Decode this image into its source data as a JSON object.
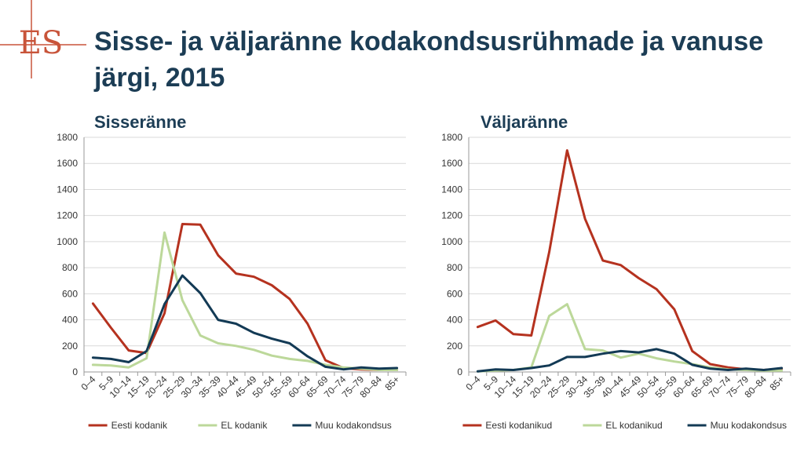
{
  "title": "Sisse- ja väljaränne kodakondsusrühmade ja vanuse järgi, 2015",
  "logo_text": "ES",
  "panels": [
    {
      "title": "Sisseränne"
    },
    {
      "title": "Väljaränne"
    }
  ],
  "colors": {
    "title": "#1c3d55",
    "logo": "#c8543a",
    "series": [
      "#b5321f",
      "#bcd89a",
      "#133a55"
    ],
    "grid": "#d9d9d9",
    "axis_text": "#333333"
  },
  "chart_data": [
    {
      "type": "line",
      "title": "Sisseränne",
      "categories": [
        "0–4",
        "5–9",
        "10–14",
        "15–19",
        "20–24",
        "25–29",
        "30–34",
        "35–39",
        "40–44",
        "45–49",
        "50–54",
        "55–59",
        "60–64",
        "65–69",
        "70–74",
        "75–79",
        "80–84",
        "85+"
      ],
      "yticks": [
        "0",
        "200",
        "400",
        "600",
        "800",
        "1000",
        "1200",
        "1400",
        "1600",
        "1800"
      ],
      "ylim": [
        0,
        1800
      ],
      "grid": true,
      "legend": "bottom",
      "series": [
        {
          "name": "Eesti kodanik",
          "values": [
            525,
            340,
            165,
            145,
            450,
            1135,
            1130,
            895,
            755,
            730,
            665,
            560,
            370,
            90,
            30,
            20,
            15,
            15
          ]
        },
        {
          "name": "EL kodanik",
          "values": [
            55,
            50,
            35,
            105,
            1070,
            550,
            280,
            220,
            200,
            170,
            125,
            100,
            85,
            55,
            35,
            25,
            15,
            15
          ]
        },
        {
          "name": "Muu kodakondsus",
          "values": [
            110,
            100,
            75,
            160,
            520,
            740,
            605,
            400,
            370,
            300,
            255,
            220,
            120,
            40,
            20,
            35,
            25,
            30
          ]
        }
      ]
    },
    {
      "type": "line",
      "title": "Väljaränne",
      "categories": [
        "0–4",
        "5–9",
        "10–14",
        "15–19",
        "20–24",
        "25–29",
        "30–34",
        "35–39",
        "40–44",
        "45–49",
        "50–54",
        "55–59",
        "60–64",
        "65–69",
        "70–74",
        "75–79",
        "80–84",
        "85+"
      ],
      "yticks": [
        "0",
        "200",
        "400",
        "600",
        "800",
        "1000",
        "1200",
        "1400",
        "1600",
        "1800"
      ],
      "ylim": [
        0,
        1800
      ],
      "grid": true,
      "legend": "bottom",
      "series": [
        {
          "name": "Eesti kodanikud",
          "values": [
            345,
            395,
            290,
            280,
            920,
            1700,
            1175,
            855,
            820,
            720,
            635,
            480,
            160,
            60,
            35,
            20,
            15,
            25
          ]
        },
        {
          "name": "EL kodanikud",
          "values": [
            5,
            10,
            15,
            35,
            430,
            520,
            175,
            165,
            110,
            140,
            105,
            80,
            60,
            35,
            20,
            15,
            10,
            10
          ]
        },
        {
          "name": "Muu kodakondsus",
          "values": [
            5,
            20,
            15,
            30,
            50,
            115,
            115,
            140,
            160,
            150,
            175,
            140,
            55,
            25,
            15,
            25,
            15,
            30
          ]
        }
      ]
    }
  ]
}
